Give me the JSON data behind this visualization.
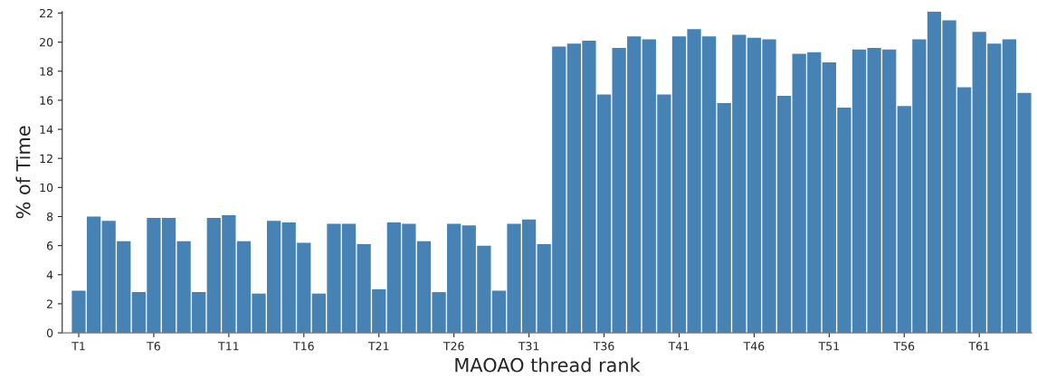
{
  "chart_data": {
    "type": "bar",
    "xlabel": "MAOAO thread rank",
    "ylabel": "% of Time",
    "categories": [
      "T1",
      null,
      null,
      null,
      null,
      "T6",
      null,
      null,
      null,
      null,
      "T11",
      null,
      null,
      null,
      null,
      "T16",
      null,
      null,
      null,
      null,
      "T21",
      null,
      null,
      null,
      null,
      "T26",
      null,
      null,
      null,
      null,
      "T31",
      null,
      null,
      null,
      null,
      "T36",
      null,
      null,
      null,
      null,
      "T41",
      null,
      null,
      null,
      null,
      "T46",
      null,
      null,
      null,
      null,
      "T51",
      null,
      null,
      null,
      null,
      "T56",
      null,
      null,
      null,
      null,
      "T61",
      null,
      null,
      null
    ],
    "values": [
      2.9,
      8.0,
      7.7,
      6.3,
      2.8,
      7.9,
      7.9,
      6.3,
      2.8,
      7.9,
      8.1,
      6.3,
      2.7,
      7.7,
      7.6,
      6.2,
      2.7,
      7.5,
      7.5,
      6.1,
      3.0,
      7.6,
      7.5,
      6.3,
      2.8,
      7.5,
      7.4,
      6.0,
      2.9,
      7.5,
      7.8,
      6.1,
      19.7,
      19.9,
      20.1,
      16.4,
      19.6,
      20.4,
      20.2,
      16.4,
      20.4,
      20.9,
      20.4,
      15.8,
      20.5,
      20.3,
      20.2,
      16.3,
      19.2,
      19.3,
      18.6,
      15.5,
      19.5,
      19.6,
      19.5,
      15.6,
      20.2,
      22.1,
      21.5,
      16.9,
      20.7,
      19.9,
      20.2,
      16.5
    ],
    "color": "#4682b4",
    "ylim": [
      0,
      22.1
    ],
    "yticks": [
      0,
      2,
      4,
      6,
      8,
      10,
      12,
      14,
      16,
      18,
      20,
      22
    ],
    "grid": false,
    "legend": false
  }
}
